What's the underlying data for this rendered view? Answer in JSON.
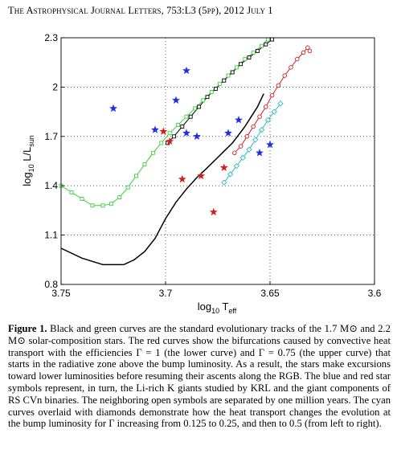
{
  "header": {
    "text": "The Astrophysical Journal Letters, 753:L3 (5pp), 2012 July 1"
  },
  "caption": {
    "label": "Figure 1.",
    "text": "Black and green curves are the standard evolutionary tracks of the 1.7 M⊙ and 2.2 M⊙ solar-composition stars. The red curves show the bifurcations caused by convective heat transport with the efficiencies Γ = 1 (the lower curve) and Γ = 0.75 (the upper curve) that starts in the radiative zone above the bump luminosity. As a result, the stars make excursions toward lower luminosities before resuming their ascents along the RGB. The blue and red star symbols represent, in turn, the Li-rich K giants studied by KRL and the giant components of RS CVn binaries. The neighboring open symbols are separated by one million years. The cyan curves overlaid with diamonds demonstrate how the heat transport changes the evolution at the bump luminosity for Γ increasing from 0.125 to 0.25, and then to 0.5 (from left to right)."
  },
  "chart_data": {
    "type": "scatter",
    "xlabel": "log10 Teff",
    "ylabel": "log10 L/Lsun",
    "xlim": [
      3.75,
      3.6
    ],
    "ylim": [
      0.8,
      2.3
    ],
    "xticks": [
      3.75,
      3.7,
      3.65,
      3.6
    ],
    "xtick_labels": [
      "3.75",
      "3.7",
      "3.65",
      "3.6"
    ],
    "yticks": [
      0.8,
      1.1,
      1.4,
      1.7,
      2.0,
      2.3
    ],
    "ytick_labels": [
      "0.8",
      "1.1",
      "1.4",
      "1.7",
      "2",
      "2.3"
    ],
    "xaxis_reversed": true,
    "grid": "dotted",
    "colors": {
      "black": "#000000",
      "green": "#3ecf3e",
      "red": "#d81b1b",
      "blue": "#1f2fe6",
      "cyan": "#2bbdbd"
    },
    "series": [
      {
        "color": "black",
        "x": [
          3.75,
          3.74,
          3.73,
          3.72,
          3.715,
          3.71,
          3.705,
          3.7,
          3.695,
          3.69,
          3.685,
          3.68,
          3.676,
          3.672,
          3.668,
          3.665,
          3.662,
          3.659,
          3.656,
          3.653
        ],
        "y": [
          1.02,
          0.96,
          0.92,
          0.92,
          0.95,
          1.0,
          1.08,
          1.2,
          1.3,
          1.38,
          1.45,
          1.51,
          1.56,
          1.61,
          1.66,
          1.71,
          1.76,
          1.82,
          1.88,
          1.96
        ]
      },
      {
        "color": "black",
        "marker": "square",
        "x": [
          3.699,
          3.696,
          3.692,
          3.688,
          3.684,
          3.68,
          3.676,
          3.672,
          3.668,
          3.664,
          3.66,
          3.656,
          3.652,
          3.649
        ],
        "y": [
          1.66,
          1.7,
          1.76,
          1.82,
          1.88,
          1.94,
          1.99,
          2.04,
          2.09,
          2.14,
          2.18,
          2.22,
          2.26,
          2.29
        ]
      },
      {
        "color": "green",
        "marker": "square",
        "x": [
          3.75,
          3.745,
          3.74,
          3.735,
          3.73,
          3.726,
          3.722,
          3.718,
          3.714,
          3.71,
          3.706,
          3.702,
          3.698,
          3.694,
          3.69,
          3.686,
          3.682,
          3.678,
          3.674,
          3.67,
          3.666,
          3.662,
          3.658,
          3.654,
          3.651
        ],
        "y": [
          1.4,
          1.36,
          1.32,
          1.28,
          1.28,
          1.29,
          1.33,
          1.39,
          1.46,
          1.53,
          1.6,
          1.66,
          1.72,
          1.77,
          1.82,
          1.87,
          1.92,
          1.97,
          2.02,
          2.07,
          2.12,
          2.17,
          2.21,
          2.25,
          2.29
        ]
      },
      {
        "color": "red",
        "marker": "circle",
        "x": [
          3.667,
          3.664,
          3.661,
          3.658,
          3.655,
          3.652,
          3.649,
          3.646,
          3.643,
          3.64,
          3.637,
          3.634,
          3.632,
          3.631
        ],
        "y": [
          1.6,
          1.64,
          1.7,
          1.76,
          1.82,
          1.88,
          1.95,
          2.01,
          2.07,
          2.12,
          2.17,
          2.21,
          2.24,
          2.22
        ]
      },
      {
        "color": "cyan",
        "marker": "diamond",
        "x": [
          3.672,
          3.669,
          3.666,
          3.663,
          3.66,
          3.657,
          3.654,
          3.651,
          3.648,
          3.645
        ],
        "y": [
          1.42,
          1.47,
          1.52,
          1.57,
          1.62,
          1.68,
          1.74,
          1.8,
          1.85,
          1.9
        ]
      }
    ],
    "stars": [
      {
        "color": "blue",
        "x": 3.725,
        "y": 1.87
      },
      {
        "color": "blue",
        "x": 3.69,
        "y": 2.1
      },
      {
        "color": "blue",
        "x": 3.695,
        "y": 1.92
      },
      {
        "color": "blue",
        "x": 3.705,
        "y": 1.74
      },
      {
        "color": "blue",
        "x": 3.69,
        "y": 1.72
      },
      {
        "color": "blue",
        "x": 3.685,
        "y": 1.7
      },
      {
        "color": "blue",
        "x": 3.67,
        "y": 1.72
      },
      {
        "color": "blue",
        "x": 3.665,
        "y": 1.8
      },
      {
        "color": "blue",
        "x": 3.655,
        "y": 1.6
      },
      {
        "color": "blue",
        "x": 3.65,
        "y": 1.65
      },
      {
        "color": "red",
        "x": 3.701,
        "y": 1.73
      },
      {
        "color": "red",
        "x": 3.698,
        "y": 1.67
      },
      {
        "color": "red",
        "x": 3.692,
        "y": 1.44
      },
      {
        "color": "red",
        "x": 3.683,
        "y": 1.46
      },
      {
        "color": "red",
        "x": 3.677,
        "y": 1.24
      },
      {
        "color": "red",
        "x": 3.672,
        "y": 1.51
      }
    ]
  }
}
